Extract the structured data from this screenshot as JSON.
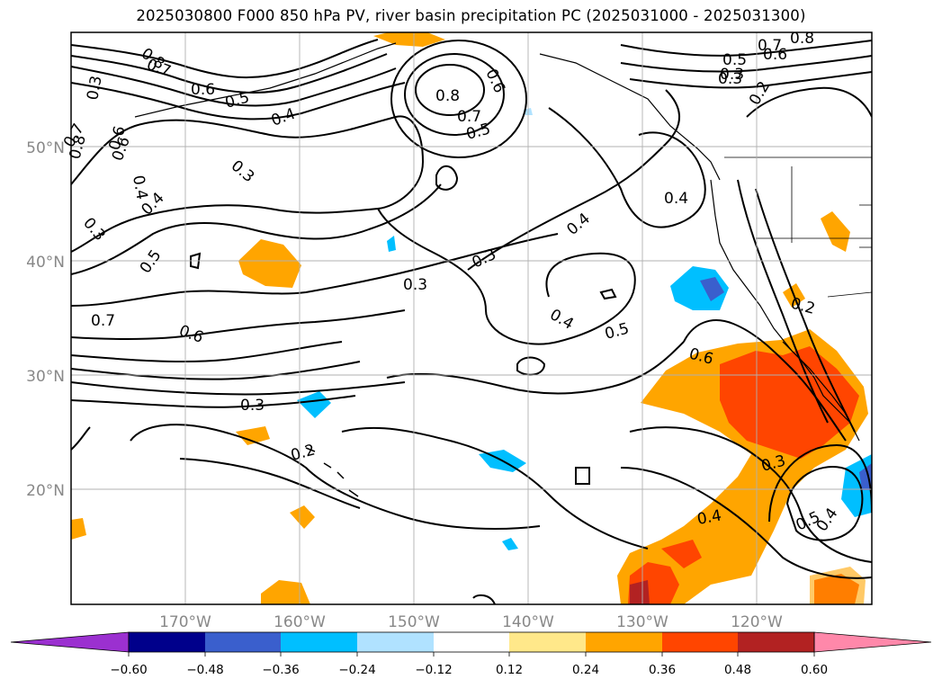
{
  "title": "2025030800 F000 850 hPa PV, river basin precipitation PC (2025031000 - 2025031300)",
  "map": {
    "lon_labels": [
      "170°W",
      "160°W",
      "150°W",
      "140°W",
      "130°W",
      "120°W"
    ],
    "lat_labels": [
      "50°N",
      "40°N",
      "30°N",
      "20°N"
    ],
    "contour_labels": [
      "0.8",
      "0.7",
      "0.6",
      "0.5",
      "0.4",
      "0.3",
      "0.3",
      "0.8",
      "0.7",
      "0.6",
      "0.5",
      "0.6",
      "0.8",
      "0.4",
      "0.3",
      "0.5",
      "0.3",
      "0.4",
      "0.7",
      "0.6",
      "0.3",
      "0.2",
      "0.3",
      "0.4",
      "0.3",
      "0.4",
      "0.5",
      "0.6",
      "0.2",
      "0.3",
      "0.4",
      "0.5",
      "0.4",
      "0.7",
      "0.8",
      "0.6",
      "0.5",
      "0.3",
      "0.2",
      "0.6",
      "0.4",
      "0.7"
    ]
  },
  "colorbar": {
    "ticks": [
      "−0.60",
      "−0.48",
      "−0.36",
      "−0.24",
      "−0.12",
      "0.12",
      "0.24",
      "0.36",
      "0.48",
      "0.60"
    ],
    "colors": [
      "#9b30d0",
      "#00008b",
      "#3a5fcd",
      "#00bfff",
      "#b0e2ff",
      "#ffffff",
      "#ffe88a",
      "#ffa500",
      "#ff4500",
      "#b22222",
      "#ff88aa"
    ]
  },
  "colors": {
    "frame": "#000000",
    "grid": "#b0b0b0",
    "contour": "#000000"
  }
}
